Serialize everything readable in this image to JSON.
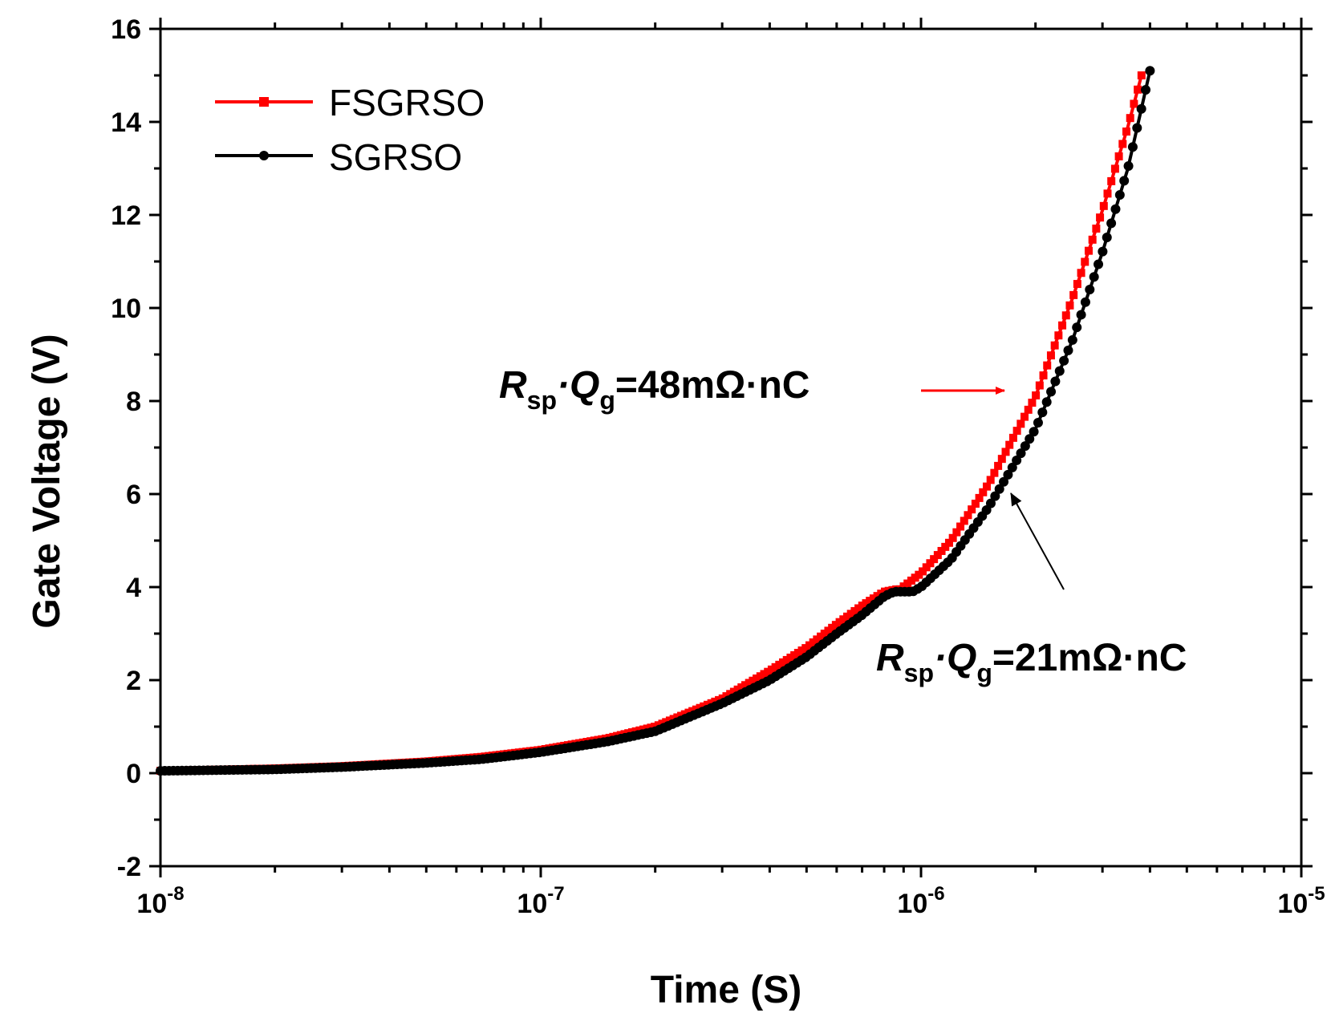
{
  "chart_data": {
    "type": "line",
    "title": "",
    "xlabel": "Time (S)",
    "ylabel": "Gate Voltage (V)",
    "xscale": "log",
    "xlim": [
      1e-08,
      1e-05
    ],
    "ylim": [
      -2,
      16
    ],
    "grid": false,
    "legend_position": "top-left",
    "x_ticks": [
      {
        "value": 1e-08,
        "base": "10",
        "exp": "-8"
      },
      {
        "value": 1e-07,
        "base": "10",
        "exp": "-7"
      },
      {
        "value": 1e-06,
        "base": "10",
        "exp": "-6"
      },
      {
        "value": 1e-05,
        "base": "10",
        "exp": "-5"
      }
    ],
    "y_ticks": [
      -2,
      0,
      2,
      4,
      6,
      8,
      10,
      12,
      14,
      16
    ],
    "series": [
      {
        "name": "FSGRSO",
        "color": "#ff0000",
        "marker": "square",
        "x": [
          1e-08,
          2e-08,
          3e-08,
          5e-08,
          7e-08,
          1e-07,
          1.5e-07,
          2e-07,
          3e-07,
          4e-07,
          5e-07,
          6e-07,
          7e-07,
          8e-07,
          8.6e-07,
          8.8e-07,
          1e-06,
          1.2e-06,
          1.5e-06,
          2e-06,
          2.5e-06,
          3e-06,
          3.5e-06,
          3.8e-06
        ],
        "y": [
          0.05,
          0.1,
          0.15,
          0.25,
          0.35,
          0.5,
          0.75,
          1.0,
          1.6,
          2.2,
          2.7,
          3.2,
          3.6,
          3.9,
          3.95,
          3.95,
          4.3,
          5.0,
          6.2,
          8.1,
          10.2,
          12.1,
          13.9,
          15.0
        ]
      },
      {
        "name": "SGRSO",
        "color": "#000000",
        "marker": "circle",
        "x": [
          1e-08,
          2e-08,
          3e-08,
          5e-08,
          7e-08,
          1e-07,
          1.5e-07,
          2e-07,
          3e-07,
          4e-07,
          5e-07,
          6e-07,
          7e-07,
          8e-07,
          8.5e-07,
          9.5e-07,
          1e-06,
          1.2e-06,
          1.5e-06,
          2e-06,
          2.5e-06,
          3e-06,
          3.5e-06,
          4e-06
        ],
        "y": [
          0.05,
          0.08,
          0.13,
          0.22,
          0.3,
          0.45,
          0.68,
          0.9,
          1.5,
          2.0,
          2.5,
          3.0,
          3.4,
          3.8,
          3.9,
          3.9,
          4.0,
          4.6,
          5.7,
          7.4,
          9.3,
          11.2,
          13.0,
          15.1
        ]
      }
    ],
    "annotations": [
      {
        "id": "fsgrso-note",
        "main": "R",
        "sub1": "sp",
        "mid": "·Q",
        "sub2": "g",
        "rest": "=48mΩ·nC",
        "arrow_color": "#ff0000"
      },
      {
        "id": "sgrso-note",
        "main": "R",
        "sub1": "sp",
        "mid": "·Q",
        "sub2": "g",
        "rest": "=21mΩ·nC",
        "arrow_color": "#000000"
      }
    ]
  }
}
